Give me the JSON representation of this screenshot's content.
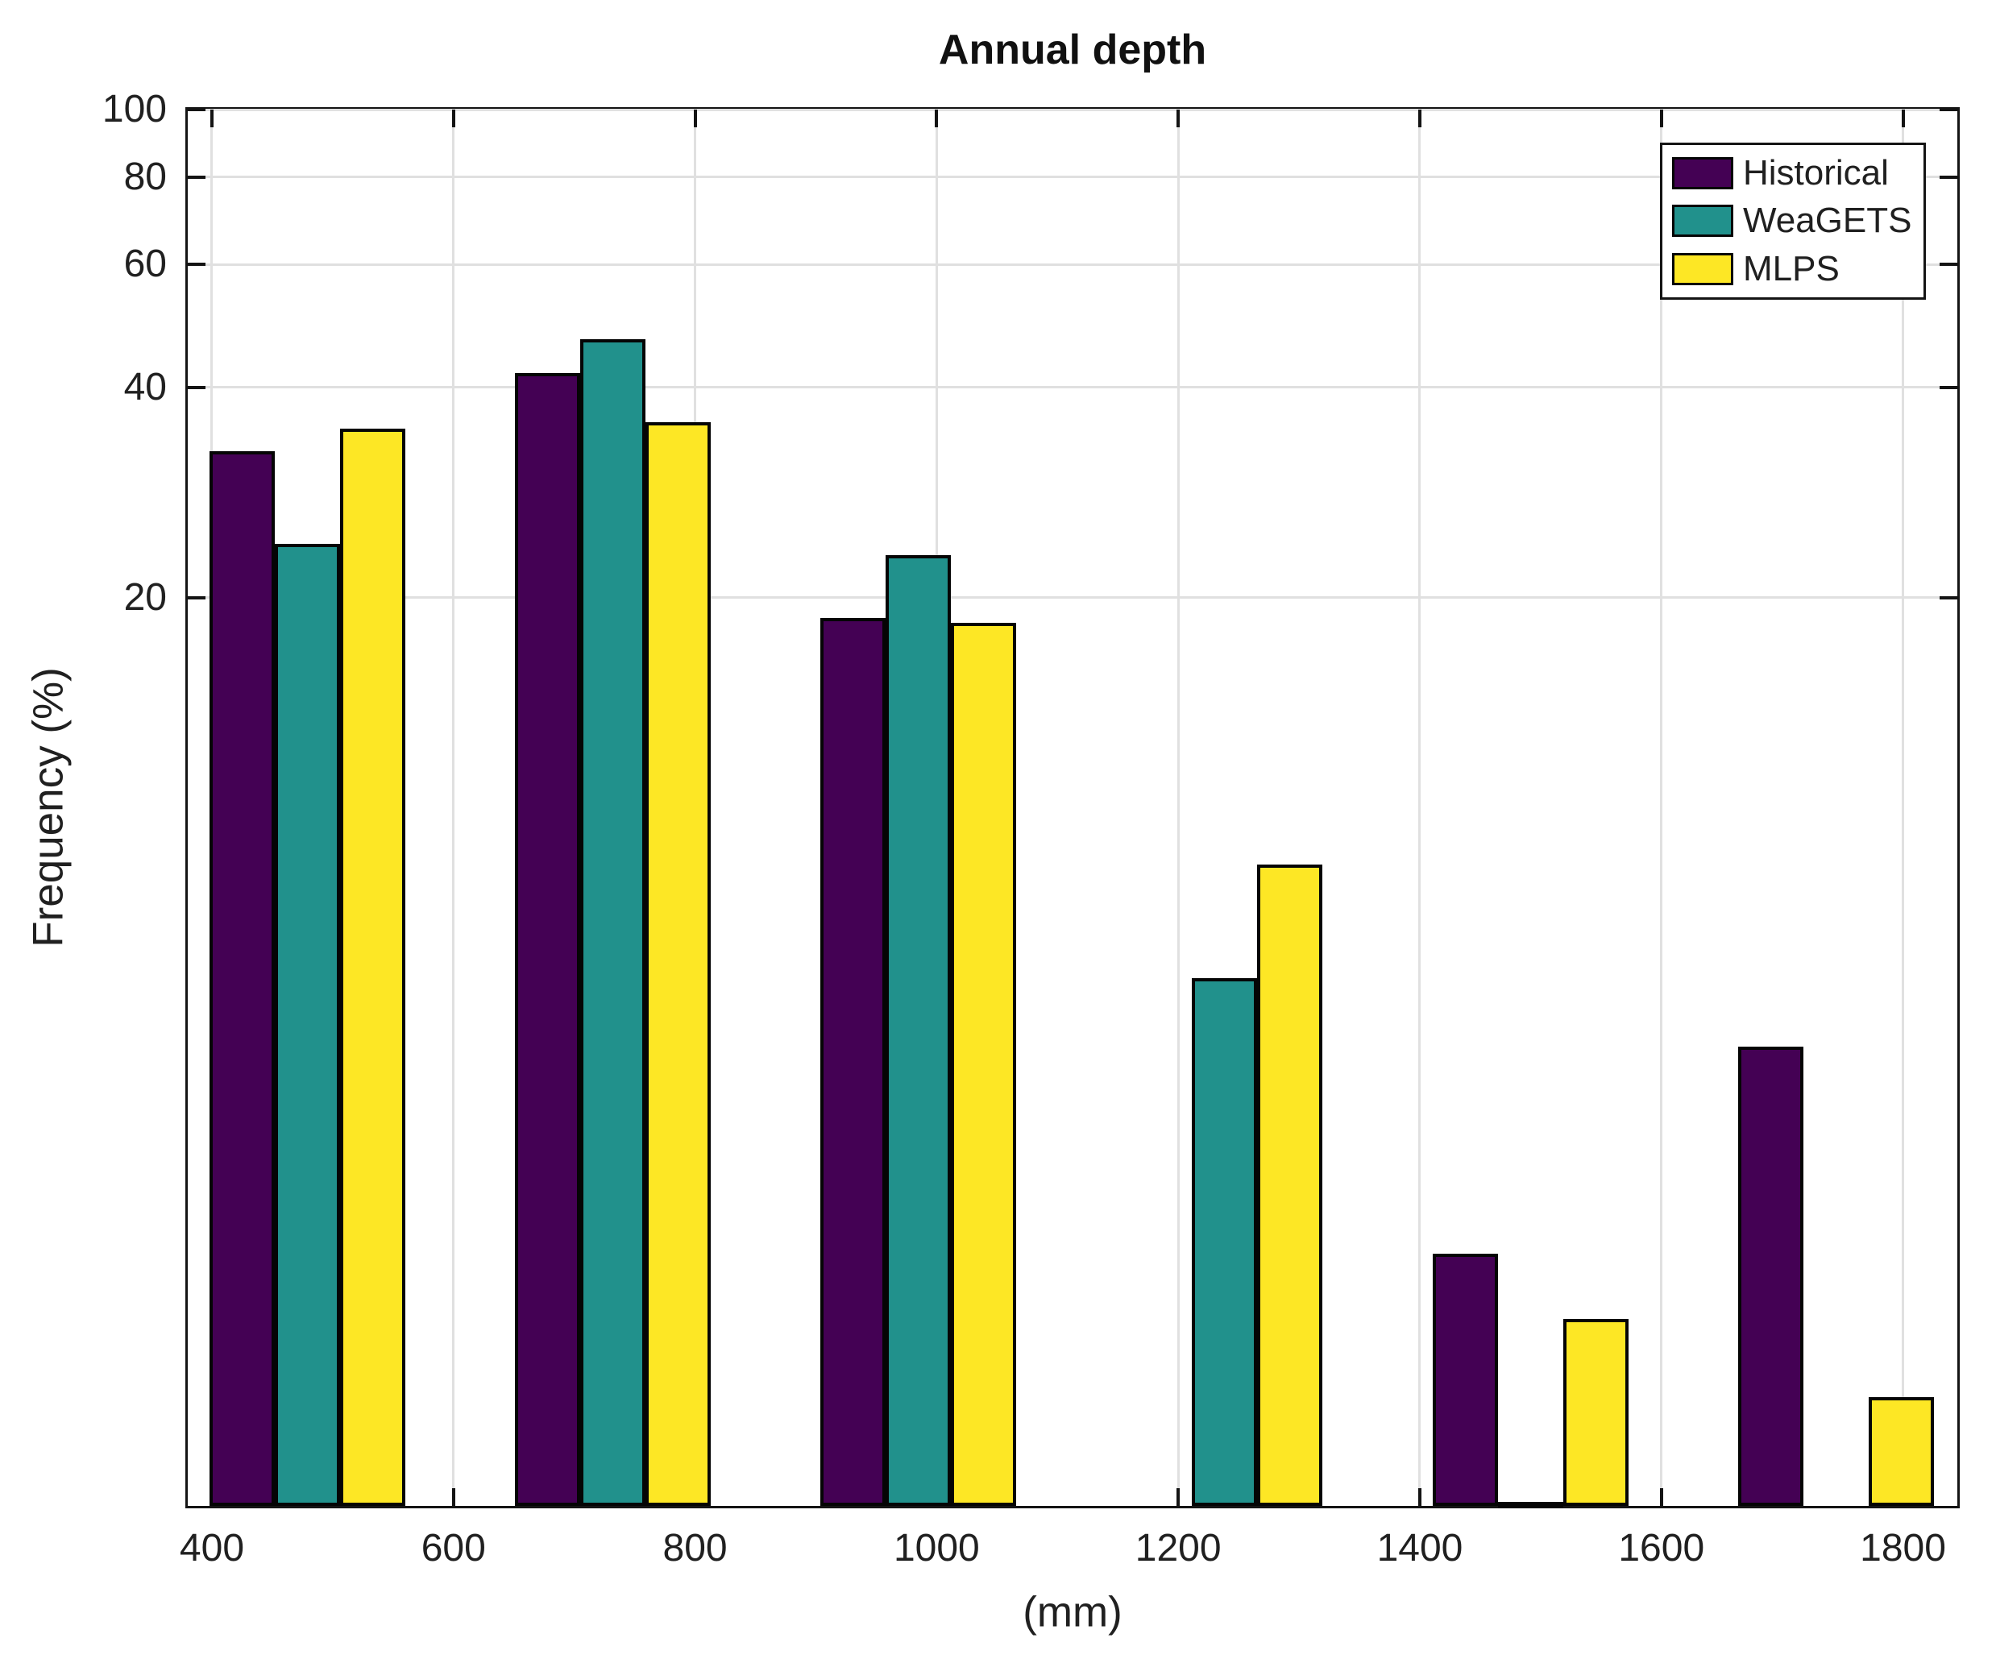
{
  "figure": {
    "background": "#ffffff"
  },
  "chart_data": {
    "type": "bar",
    "title": "Annual depth",
    "xlabel": "(mm)",
    "ylabel": "Frequency (%)",
    "yscale": "log",
    "ylim": [
      1,
      100
    ],
    "xlim": [
      380,
      1845
    ],
    "yticks": [
      20,
      40,
      60,
      80,
      100
    ],
    "xticks": [
      400,
      600,
      800,
      1000,
      1200,
      1400,
      1600,
      1800
    ],
    "grid": true,
    "legend_position": "top-right",
    "bin_centers_mm": [
      479,
      732,
      985,
      1238.5,
      1491.5,
      1744.5
    ],
    "bar_width_mm": 54,
    "series": [
      {
        "name": "Historical",
        "color": "#440154",
        "values": [
          32.4,
          41.9,
          18.7,
          null,
          2.3,
          4.55
        ]
      },
      {
        "name": "WeaGETS",
        "color": "#21918c",
        "values": [
          23.9,
          46.9,
          23.0,
          5.7,
          1.0,
          null
        ]
      },
      {
        "name": "MLPS",
        "color": "#fde725",
        "values": [
          34.9,
          35.7,
          18.4,
          8.3,
          1.85,
          1.43
        ]
      }
    ],
    "axis_color": "#141414",
    "grid_color": "#e0e0e0",
    "text_color": "#202020",
    "bar_edge_color": "#050505"
  }
}
